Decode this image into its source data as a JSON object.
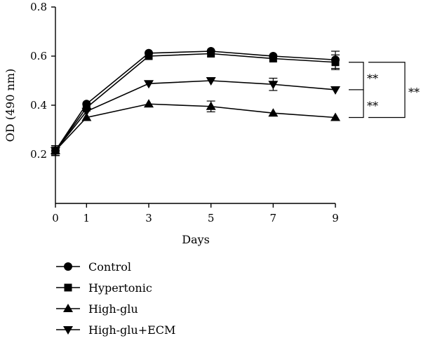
{
  "chart_data": {
    "type": "line",
    "xlabel": "Days",
    "ylabel": "OD (490 nm)",
    "x": [
      0,
      1,
      3,
      5,
      7,
      9
    ],
    "x_ticks": [
      0,
      1,
      3,
      5,
      7,
      9
    ],
    "x_tick_labels": [
      "0",
      "1",
      "3",
      "5",
      "7",
      "9"
    ],
    "ylim": [
      0.0,
      0.8
    ],
    "y_ticks": [
      0.2,
      0.4,
      0.6,
      0.8
    ],
    "y_tick_labels": [
      "0.2",
      "0.4",
      "0.6",
      "0.8"
    ],
    "grid": false,
    "legend_position": "bottom",
    "series": [
      {
        "name": "Control",
        "marker": "circle",
        "values": [
          0.215,
          0.405,
          0.612,
          0.62,
          0.6,
          0.585
        ],
        "errors": [
          0.02,
          0.01,
          0.01,
          0.01,
          0.01,
          0.035
        ]
      },
      {
        "name": "Hypertonic",
        "marker": "square",
        "values": [
          0.215,
          0.39,
          0.6,
          0.61,
          0.59,
          0.575
        ],
        "errors": [
          0.02,
          0.01,
          0.01,
          0.01,
          0.01,
          0.03
        ]
      },
      {
        "name": "High-glu",
        "marker": "triangle-up",
        "values": [
          0.215,
          0.35,
          0.405,
          0.395,
          0.368,
          0.35
        ],
        "errors": [
          0.02,
          0.01,
          0.01,
          0.022,
          0.01,
          0.01
        ]
      },
      {
        "name": "High-glu+ECM",
        "marker": "triangle-down",
        "values": [
          0.215,
          0.375,
          0.488,
          0.5,
          0.485,
          0.463
        ],
        "errors": [
          0.02,
          0.01,
          0.01,
          0.01,
          0.025,
          0.01
        ]
      }
    ],
    "annotations": [
      {
        "text": "**",
        "between": [
          "Hypertonic",
          "High-glu+ECM"
        ]
      },
      {
        "text": "**",
        "between": [
          "High-glu+ECM",
          "High-glu"
        ]
      },
      {
        "text": "**",
        "between": [
          "Hypertonic",
          "High-glu"
        ]
      }
    ]
  }
}
